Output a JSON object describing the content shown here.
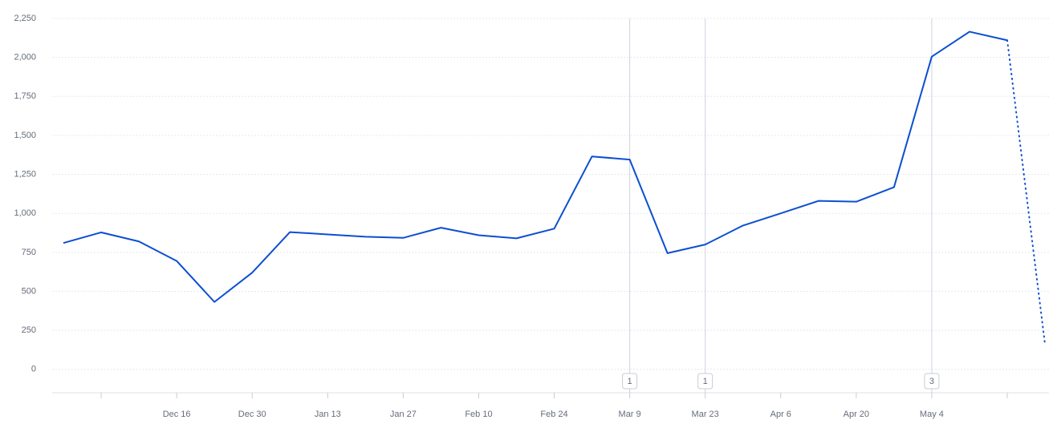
{
  "chart_data": {
    "type": "line",
    "categories": [
      null,
      null,
      null,
      "Dec 16",
      null,
      "Dec 30",
      null,
      "Jan 13",
      null,
      "Jan 27",
      null,
      "Feb 10",
      null,
      "Feb 24",
      null,
      "Mar 9",
      null,
      "Mar 23",
      null,
      "Apr 6",
      null,
      "Apr 20",
      null,
      "May 4",
      null,
      null,
      null
    ],
    "values": [
      810,
      878,
      820,
      695,
      432,
      620,
      880,
      865,
      850,
      843,
      908,
      860,
      840,
      902,
      1365,
      1345,
      745,
      800,
      922,
      1000,
      1080,
      1075,
      1168,
      2005,
      2165,
      2110,
      160
    ],
    "color": "#0b4fd1",
    "last_segment_style": "dotted",
    "ylim": [
      -150,
      2250
    ],
    "yticks": [
      0,
      250,
      500,
      750,
      {
        "value": 1000,
        "label": "1,000"
      },
      {
        "value": 1250,
        "label": "1,250"
      },
      {
        "value": 1500,
        "label": "1,500"
      },
      {
        "value": 1750,
        "label": "1,750"
      },
      {
        "value": 2000,
        "label": "2,000"
      },
      {
        "value": 2250,
        "label": "2,250"
      }
    ],
    "grid": true,
    "annotations": [
      {
        "at": "Mar 9",
        "count": 1
      },
      {
        "at": "Mar 23",
        "count": 1
      },
      {
        "at": "May 4",
        "count": 3
      }
    ]
  }
}
